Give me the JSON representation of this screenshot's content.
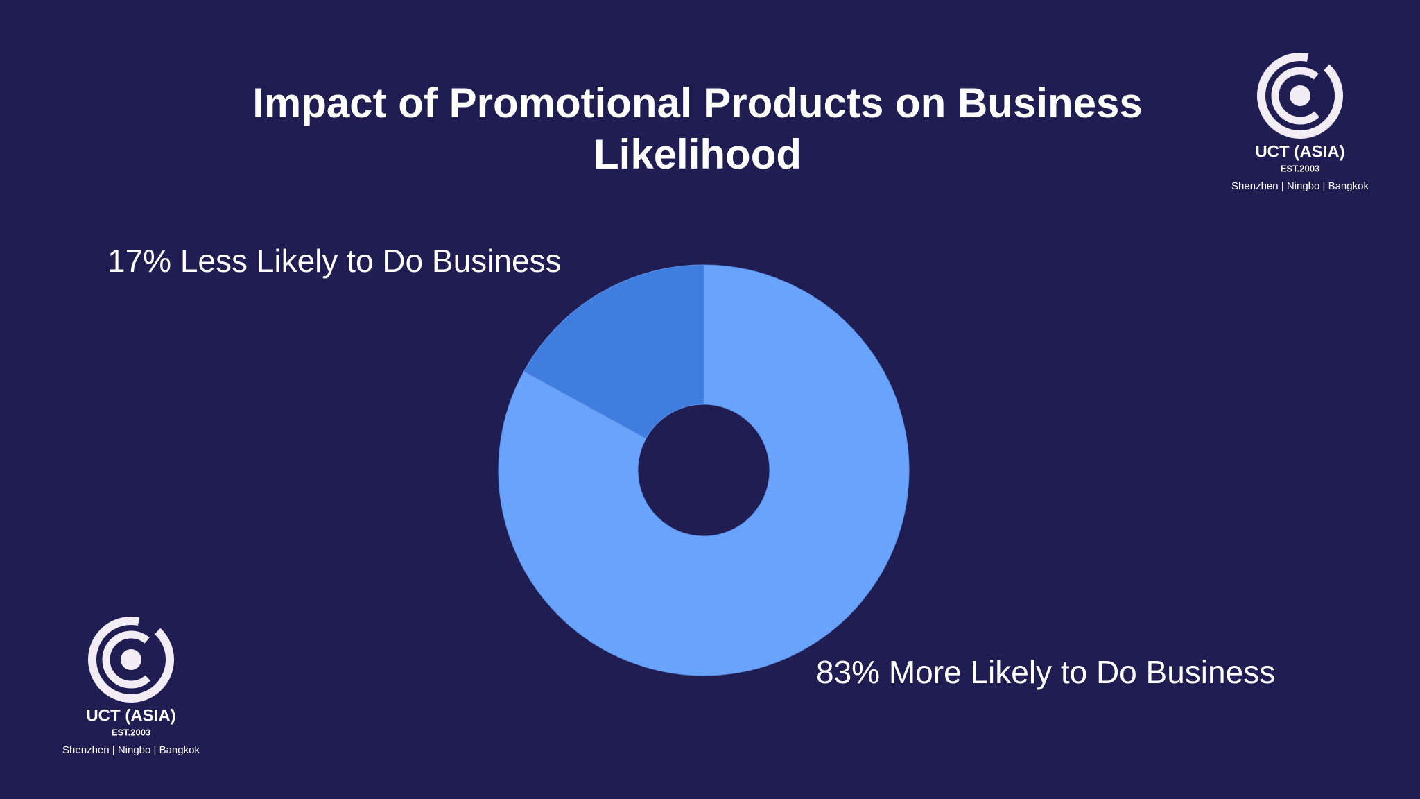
{
  "chart_data": {
    "type": "donut",
    "title": "Impact of Promotional Products on Business Likelihood",
    "values": [
      83,
      17
    ],
    "value_labels": [
      "83% More Likely to Do Business",
      "17% Less Likely to Do Business"
    ],
    "colors": [
      "#6aa3fc",
      "#3f7ddf"
    ]
  },
  "logo": {
    "name": "UCT (ASIA)",
    "established": "EST.2003",
    "locations": "Shenzhen | Ningbo | Bangkok"
  }
}
